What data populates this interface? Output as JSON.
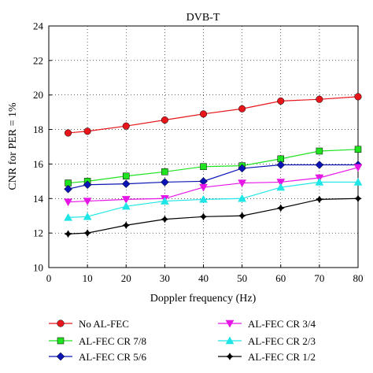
{
  "chart_data": {
    "type": "line",
    "title": "DVB-T",
    "xlabel": "Doppler frequency (Hz)",
    "ylabel": "CNR for PER = 1%",
    "xlim": [
      0,
      80
    ],
    "ylim": [
      10,
      24
    ],
    "xticks": [
      0,
      10,
      20,
      30,
      40,
      50,
      60,
      70,
      80
    ],
    "yticks": [
      10,
      12,
      14,
      16,
      18,
      20,
      22,
      24
    ],
    "grid": true,
    "legend_position": "bottom",
    "x": [
      5,
      10,
      20,
      30,
      40,
      50,
      60,
      70,
      80
    ],
    "series": [
      {
        "name": "No AL-FEC",
        "color": "#e8151b",
        "marker": "circle",
        "values": [
          17.8,
          17.9,
          18.2,
          18.55,
          18.9,
          19.2,
          19.65,
          19.75,
          19.9
        ]
      },
      {
        "name": "AL-FEC CR 7/8",
        "color": "#1ee31e",
        "marker": "square",
        "values": [
          14.9,
          15.0,
          15.3,
          15.55,
          15.85,
          15.9,
          16.3,
          16.75,
          16.85
        ]
      },
      {
        "name": "AL-FEC CR 5/6",
        "color": "#0a14b4",
        "marker": "diamond",
        "values": [
          14.55,
          14.8,
          14.85,
          14.95,
          15.0,
          15.75,
          15.95,
          15.95,
          15.95
        ]
      },
      {
        "name": "AL-FEC CR 3/4",
        "color": "#e617e6",
        "marker": "triangle-down",
        "values": [
          13.8,
          13.85,
          13.95,
          14.0,
          14.65,
          14.9,
          14.95,
          15.2,
          15.8
        ]
      },
      {
        "name": "AL-FEC CR 2/3",
        "color": "#1ee6e6",
        "marker": "triangle-up",
        "values": [
          12.9,
          12.95,
          13.55,
          13.85,
          13.95,
          14.0,
          14.65,
          14.95,
          14.95
        ]
      },
      {
        "name": "AL-FEC CR 1/2",
        "color": "#000000",
        "marker": "plus",
        "values": [
          11.95,
          12.0,
          12.45,
          12.8,
          12.95,
          13.0,
          13.45,
          13.95,
          14.0
        ]
      }
    ]
  }
}
